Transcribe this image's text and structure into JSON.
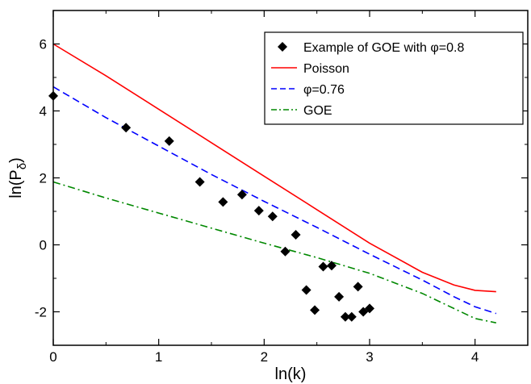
{
  "chart_data": {
    "type": "line",
    "xlabel": "ln(k)",
    "ylabel_main": "ln(P",
    "ylabel_sub": "δ",
    "ylabel_close": ")",
    "xlim": [
      0,
      4.5
    ],
    "ylim": [
      -3,
      7
    ],
    "xticks": [
      0,
      1,
      2,
      3,
      4
    ],
    "yticks": [
      -2,
      0,
      2,
      4,
      6
    ],
    "xtick_labels": [
      "0",
      "1",
      "2",
      "3",
      "4"
    ],
    "ytick_labels": [
      "-2",
      "0",
      "2",
      "4",
      "6"
    ],
    "legend_position": "top-right",
    "series": [
      {
        "name": "Example of GOE with φ=0.8",
        "style": "markers",
        "marker": "diamond",
        "color": "#000000",
        "x": [
          0.0,
          0.69,
          1.1,
          1.39,
          1.61,
          1.79,
          1.95,
          2.08,
          2.2,
          2.3,
          2.4,
          2.48,
          2.56,
          2.64,
          2.71,
          2.77,
          2.83,
          2.89,
          2.94,
          3.0
        ],
        "y": [
          4.45,
          3.5,
          3.1,
          1.88,
          1.28,
          1.5,
          1.02,
          0.85,
          -0.2,
          0.3,
          -1.35,
          -1.95,
          -0.65,
          -0.62,
          -1.55,
          -2.15,
          -2.15,
          -1.25,
          -2.0,
          -1.9
        ]
      },
      {
        "name": "Poisson",
        "style": "solid",
        "color": "#ff0000",
        "x": [
          0.0,
          0.5,
          1.0,
          1.5,
          2.0,
          2.5,
          3.0,
          3.5,
          3.8,
          4.0,
          4.2
        ],
        "y": [
          6.0,
          5.05,
          4.05,
          3.05,
          2.05,
          1.05,
          0.05,
          -0.82,
          -1.2,
          -1.36,
          -1.4
        ]
      },
      {
        "name": "φ=0.76",
        "style": "dashed",
        "color": "#0000ff",
        "x": [
          0.0,
          0.5,
          1.0,
          1.5,
          2.0,
          2.5,
          3.0,
          3.5,
          3.8,
          4.0,
          4.2
        ],
        "y": [
          4.72,
          3.8,
          2.95,
          2.1,
          1.3,
          0.52,
          -0.28,
          -1.05,
          -1.55,
          -1.85,
          -2.05
        ]
      },
      {
        "name": "GOE",
        "style": "dashdot",
        "color": "#008800",
        "x": [
          0.0,
          0.5,
          1.0,
          1.5,
          2.0,
          2.5,
          3.0,
          3.5,
          3.8,
          4.0,
          4.2
        ],
        "y": [
          1.88,
          1.4,
          0.95,
          0.5,
          0.05,
          -0.38,
          -0.85,
          -1.45,
          -1.9,
          -2.2,
          -2.33
        ]
      }
    ]
  }
}
